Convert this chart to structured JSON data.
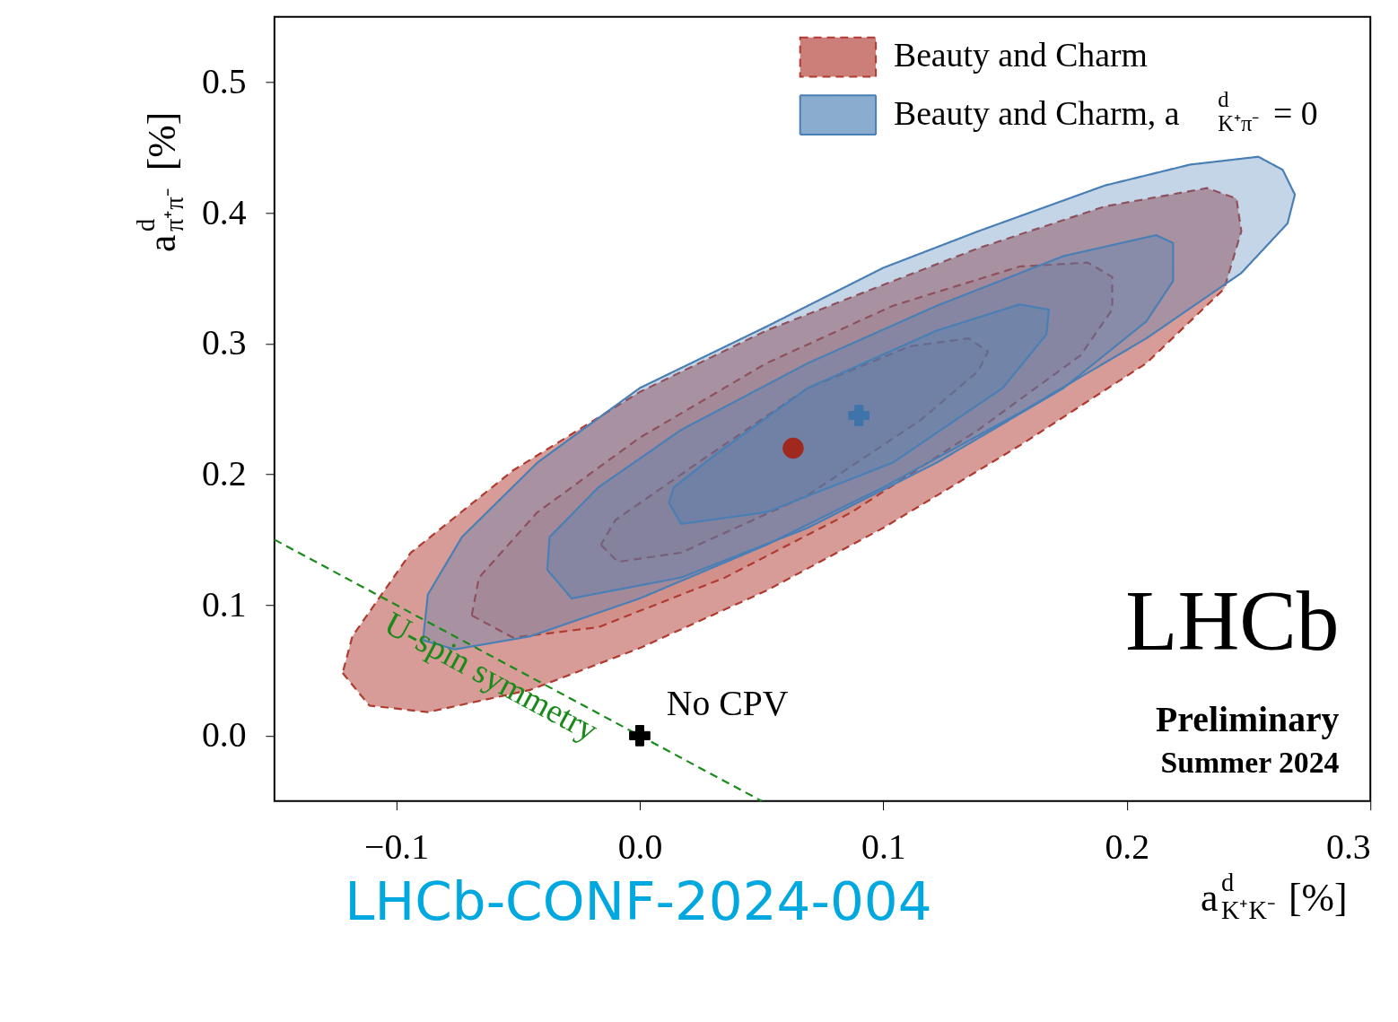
{
  "chart_data": {
    "type": "area",
    "xlabel": "a$^{d}$$_{K⁺K⁻}$ [%]",
    "ylabel": "a$^{d}$$_{π⁺π⁻}$ [%]",
    "xlim": [
      -0.15,
      0.3
    ],
    "xticks": [
      {
        "value": -0.1,
        "label": "−0.1"
      },
      {
        "value": 0,
        "label": "0.0"
      },
      0.1,
      0.2,
      0.3
    ],
    "ylim": [
      -0.05,
      0.55
    ],
    "yticks": [
      {
        "value": 0,
        "label": "0.0"
      },
      0.1,
      0.2,
      0.3,
      0.4,
      0.5
    ],
    "grid": false,
    "legend": "top right",
    "series": [
      {
        "name": "Beauty and Charm",
        "color": "#b03a30",
        "line_style": "dashed",
        "x": [
          -0.122,
          -0.111,
          -0.087,
          -0.045,
          0.0,
          0.052,
          0.1,
          0.156,
          0.208,
          0.24,
          0.247,
          0.245,
          0.233,
          0.191,
          0.139,
          0.1,
          0.052,
          0.0,
          -0.052,
          -0.094,
          -0.118
        ],
        "values": [
          0.048,
          0.023,
          0.018,
          0.035,
          0.067,
          0.111,
          0.159,
          0.222,
          0.285,
          0.342,
          0.386,
          0.411,
          0.419,
          0.405,
          0.373,
          0.345,
          0.31,
          0.263,
          0.203,
          0.14,
          0.076
        ]
      },
      {
        "color": "#b03a30",
        "line_style": "dashed",
        "x": [
          -0.069,
          -0.052,
          -0.017,
          0.035,
          0.087,
          0.139,
          0.181,
          0.194,
          0.194,
          0.184,
          0.156,
          0.104,
          0.052,
          0.0,
          -0.042,
          -0.066
        ],
        "values": [
          0.092,
          0.075,
          0.083,
          0.121,
          0.171,
          0.234,
          0.291,
          0.326,
          0.351,
          0.362,
          0.359,
          0.329,
          0.285,
          0.228,
          0.171,
          0.121
        ]
      },
      {
        "color": "#b03a30",
        "line_style": "dashed",
        "x": [
          -0.016,
          -0.009,
          0.017,
          0.069,
          0.115,
          0.139,
          0.143,
          0.135,
          0.111,
          0.069,
          0.024,
          -0.01
        ],
        "values": [
          0.146,
          0.133,
          0.14,
          0.184,
          0.241,
          0.279,
          0.294,
          0.304,
          0.298,
          0.266,
          0.209,
          0.165
        ]
      },
      {
        "name": "Beauty and Charm, a$^{d}$$_{K⁺π⁻}$ = 0",
        "color": "#4a7fb5",
        "line_style": "solid",
        "x": [
          -0.089,
          -0.076,
          -0.045,
          0.0,
          0.052,
          0.1,
          0.156,
          0.208,
          0.247,
          0.266,
          0.269,
          0.264,
          0.254,
          0.226,
          0.191,
          0.139,
          0.1,
          0.052,
          0.0,
          -0.042,
          -0.073,
          -0.087
        ],
        "values": [
          0.073,
          0.066,
          0.076,
          0.105,
          0.146,
          0.19,
          0.247,
          0.304,
          0.354,
          0.392,
          0.414,
          0.433,
          0.443,
          0.437,
          0.421,
          0.386,
          0.358,
          0.313,
          0.266,
          0.209,
          0.152,
          0.108
        ]
      },
      {
        "color": "#4a7fb5",
        "line_style": "solid",
        "x": [
          -0.038,
          -0.028,
          0.017,
          0.069,
          0.122,
          0.174,
          0.208,
          0.219,
          0.219,
          0.212,
          0.174,
          0.122,
          0.069,
          0.017,
          -0.017,
          -0.037
        ],
        "values": [
          0.127,
          0.105,
          0.121,
          0.159,
          0.209,
          0.266,
          0.317,
          0.348,
          0.377,
          0.383,
          0.367,
          0.329,
          0.285,
          0.234,
          0.19,
          0.152
        ]
      },
      {
        "color": "#4a7fb5",
        "line_style": "solid",
        "x": [
          0.012,
          0.017,
          0.052,
          0.104,
          0.149,
          0.167,
          0.168,
          0.156,
          0.122,
          0.069,
          0.031,
          0.014
        ],
        "values": [
          0.178,
          0.162,
          0.171,
          0.209,
          0.266,
          0.307,
          0.326,
          0.33,
          0.31,
          0.266,
          0.215,
          0.19
        ]
      },
      {
        "type": "line",
        "color": "#1a8a1a",
        "line_style": "dashed",
        "x": [
          -0.15,
          0.05
        ],
        "values": [
          0.15,
          -0.05
        ]
      },
      {
        "type": "scatter",
        "marker": "circle",
        "color": "#a0281e",
        "x": [
          0.063
        ],
        "values": [
          0.22
        ]
      },
      {
        "type": "scatter",
        "marker": "cross",
        "color": "#3f74aa",
        "x": [
          0.09
        ],
        "values": [
          0.245
        ]
      },
      {
        "type": "scatter",
        "marker": "cross",
        "color": "#000000",
        "x": [
          0.0
        ],
        "values": [
          0.0
        ]
      }
    ],
    "annotations": [
      "U-spin symmetry",
      {
        "text": "No CPV",
        "x": 0.0,
        "y": 0.0
      },
      "LHCb",
      "Preliminary",
      "Summer 2024",
      "LHCb-CONF-2024-004"
    ]
  }
}
